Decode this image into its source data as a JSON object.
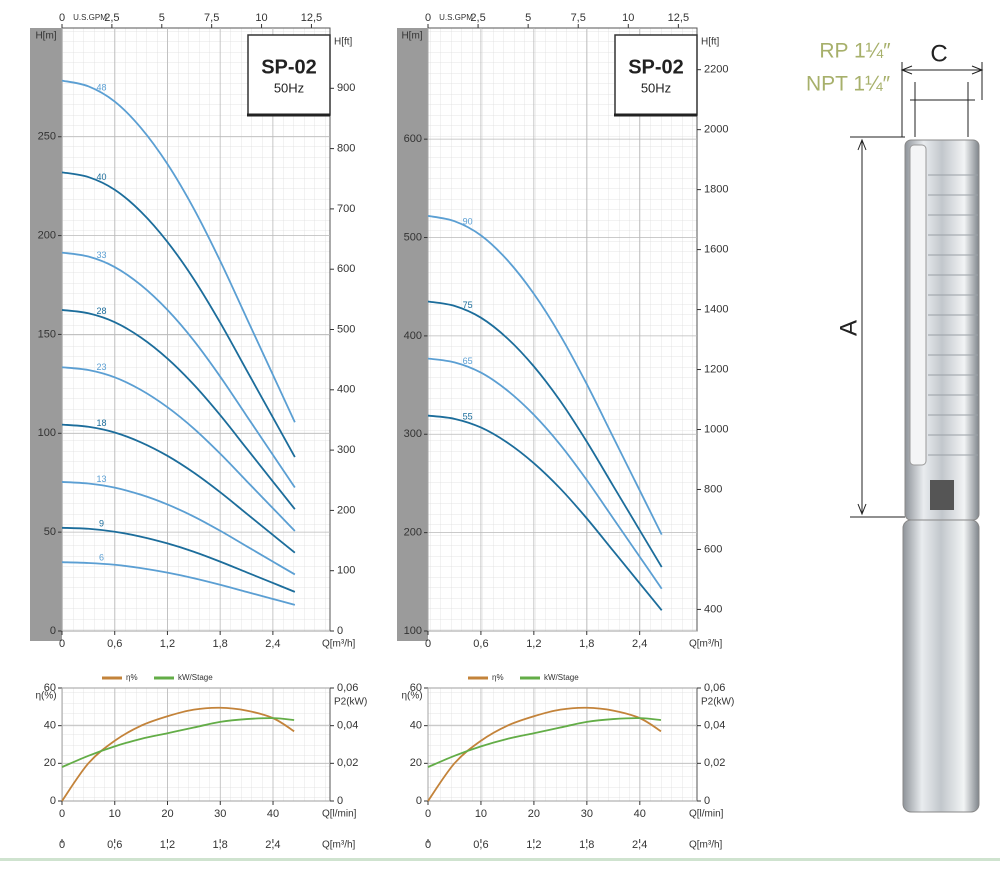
{
  "chart_data": [
    {
      "type": "line",
      "title": "SP-02",
      "subtitle": "50Hz",
      "x_label": "Q[m³/h]",
      "y_label": "H[m]",
      "y2_label": "H[ft]",
      "x_top_label": "U.S.GPM",
      "x": [
        0,
        0.3,
        0.6,
        0.9,
        1.2,
        1.5,
        1.8,
        2.1,
        2.4,
        2.65
      ],
      "xlim": [
        0,
        3.05
      ],
      "xticks": [
        0,
        {
          "value": 0.6,
          "label": "0,6"
        },
        {
          "value": 1.2,
          "label": "1,2"
        },
        {
          "value": 1.8,
          "label": "1,8"
        },
        {
          "value": 2.4,
          "label": "2,4"
        }
      ],
      "x_top_lim": [
        0,
        13.43
      ],
      "x_top_ticks": [
        0,
        {
          "value": 2.5,
          "label": "2,5"
        },
        5,
        {
          "value": 7.5,
          "label": "7,5"
        },
        10,
        {
          "value": 12.5,
          "label": "12,5"
        }
      ],
      "ylim": [
        0,
        305
      ],
      "yticks": [
        0,
        50,
        100,
        150,
        200,
        250
      ],
      "y2lim": [
        0,
        1000
      ],
      "y2ticks": [
        0,
        100,
        200,
        300,
        400,
        500,
        600,
        700,
        800,
        900
      ],
      "grid": true,
      "series": [
        {
          "name": "6",
          "color": "#5b9fd3",
          "values": [
            34.8,
            34.4,
            33.5,
            31.8,
            29.5,
            26.7,
            23.4,
            19.8,
            16.2,
            13.2
          ]
        },
        {
          "name": "9",
          "color": "#1c6d9b",
          "values": [
            52.2,
            51.7,
            50.2,
            47.7,
            44.3,
            40.1,
            35.1,
            29.7,
            24.3,
            19.8
          ]
        },
        {
          "name": "13",
          "color": "#5b9fd3",
          "values": [
            75.4,
            74.6,
            72.5,
            68.9,
            64,
            57.9,
            50.7,
            42.9,
            35.1,
            28.6
          ]
        },
        {
          "name": "18",
          "color": "#1c6d9b",
          "values": [
            104.4,
            103.3,
            100.4,
            95.4,
            88.6,
            80.1,
            70.2,
            59.4,
            48.6,
            39.6
          ]
        },
        {
          "name": "23",
          "color": "#5b9fd3",
          "values": [
            133.4,
            132,
            128.3,
            121.9,
            113.2,
            102.4,
            89.7,
            75.9,
            62.1,
            50.6
          ]
        },
        {
          "name": "28",
          "color": "#1c6d9b",
          "values": [
            162.4,
            160.7,
            156.2,
            148.4,
            137.8,
            124.6,
            109.2,
            92.4,
            75.6,
            61.6
          ]
        },
        {
          "name": "33",
          "color": "#5b9fd3",
          "values": [
            191.4,
            189.4,
            184.1,
            174.9,
            162.4,
            146.9,
            128.7,
            108.9,
            89.1,
            72.6
          ]
        },
        {
          "name": "40",
          "color": "#1c6d9b",
          "values": [
            232,
            229.6,
            223.2,
            212,
            196.8,
            178,
            156,
            132,
            108,
            88
          ]
        },
        {
          "name": "48",
          "color": "#5b9fd3",
          "values": [
            278.4,
            275.5,
            267.8,
            254.4,
            236.2,
            213.6,
            187.2,
            158.4,
            129.6,
            105.6
          ]
        }
      ]
    },
    {
      "type": "line",
      "title": "SP-02",
      "subtitle": "50Hz",
      "x_label": "Q[m³/h]",
      "y_label": "H[m]",
      "y2_label": "H[ft]",
      "x_top_label": "U.S.GPM",
      "x": [
        0,
        0.3,
        0.6,
        0.9,
        1.2,
        1.5,
        1.8,
        2.1,
        2.4,
        2.65
      ],
      "xlim": [
        0,
        3.05
      ],
      "xticks": [
        0,
        {
          "value": 0.6,
          "label": "0,6"
        },
        {
          "value": 1.2,
          "label": "1,2"
        },
        {
          "value": 1.8,
          "label": "1,8"
        },
        {
          "value": 2.4,
          "label": "2,4"
        }
      ],
      "x_top_lim": [
        0,
        13.43
      ],
      "x_top_ticks": [
        0,
        {
          "value": 2.5,
          "label": "2,5"
        },
        5,
        {
          "value": 7.5,
          "label": "7,5"
        },
        10,
        {
          "value": 12.5,
          "label": "12,5"
        }
      ],
      "ylim": [
        100,
        713
      ],
      "yticks": [
        100,
        200,
        300,
        400,
        500,
        600
      ],
      "y2lim": [
        328,
        2339
      ],
      "y2ticks": [
        400,
        600,
        800,
        1000,
        1200,
        1400,
        1600,
        1800,
        2000,
        2200
      ],
      "grid": true,
      "series": [
        {
          "name": "55",
          "color": "#1c6d9b",
          "values": [
            319,
            315.7,
            306.9,
            291.5,
            270.6,
            244.8,
            214.5,
            181.5,
            148.5,
            121
          ]
        },
        {
          "name": "65",
          "color": "#5b9fd3",
          "values": [
            377,
            373.1,
            362.7,
            344.5,
            319.8,
            289.3,
            253.5,
            214.5,
            175.5,
            143
          ]
        },
        {
          "name": "75",
          "color": "#1c6d9b",
          "values": [
            435,
            430.5,
            418.5,
            397.5,
            369,
            333.8,
            292.5,
            247.5,
            202.5,
            165
          ]
        },
        {
          "name": "90",
          "color": "#5b9fd3",
          "values": [
            522,
            516.6,
            502.2,
            477,
            442.8,
            400.5,
            351,
            297,
            243,
            198
          ]
        }
      ]
    },
    {
      "type": "line",
      "x_label": "Q[l/min]",
      "y_label": "η(%)",
      "y2_label": "P2(kW)",
      "x_bottom2_label": "Q[m³/h]",
      "x": [
        0,
        5,
        10,
        15,
        20,
        25,
        30,
        35,
        40,
        44
      ],
      "xlim": [
        0,
        50.8
      ],
      "xticks": [
        0,
        10,
        20,
        30,
        40
      ],
      "x_bottom2_lim": [
        0,
        3.05
      ],
      "x_bottom2_ticks": [
        0,
        {
          "value": 0.6,
          "label": "0,6"
        },
        {
          "value": 1.2,
          "label": "1,2"
        },
        {
          "value": 1.8,
          "label": "1,8"
        },
        {
          "value": 2.4,
          "label": "2,4"
        }
      ],
      "ylim": [
        0,
        60
      ],
      "yticks": [
        0,
        20,
        40,
        60
      ],
      "y2lim": [
        0,
        0.06
      ],
      "y2ticks": [
        0,
        {
          "value": 0.02,
          "label": "0,02"
        },
        {
          "value": 0.04,
          "label": "0,04"
        },
        {
          "value": 0.06,
          "label": "0,06"
        }
      ],
      "grid": true,
      "legend": "top",
      "series": [
        {
          "name": "η%",
          "color": "#c3833a",
          "values": [
            0,
            20,
            32,
            40,
            45,
            48.5,
            49.5,
            48,
            44,
            37
          ]
        },
        {
          "name": "kW/Stage",
          "color": "#63ad47",
          "axis": "y2",
          "values": [
            0.018,
            0.024,
            0.029,
            0.033,
            0.036,
            0.039,
            0.042,
            0.0435,
            0.044,
            0.043
          ]
        }
      ]
    },
    {
      "type": "line",
      "x_label": "Q[l/min]",
      "y_label": "η(%)",
      "y2_label": "P2(kW)",
      "x_bottom2_label": "Q[m³/h]",
      "x": [
        0,
        5,
        10,
        15,
        20,
        25,
        30,
        35,
        40,
        44
      ],
      "xlim": [
        0,
        50.8
      ],
      "xticks": [
        0,
        10,
        20,
        30,
        40
      ],
      "x_bottom2_lim": [
        0,
        3.05
      ],
      "x_bottom2_ticks": [
        0,
        {
          "value": 0.6,
          "label": "0,6"
        },
        {
          "value": 1.2,
          "label": "1,2"
        },
        {
          "value": 1.8,
          "label": "1,8"
        },
        {
          "value": 2.4,
          "label": "2,4"
        }
      ],
      "ylim": [
        0,
        60
      ],
      "yticks": [
        0,
        20,
        40,
        60
      ],
      "y2lim": [
        0,
        0.06
      ],
      "y2ticks": [
        0,
        {
          "value": 0.02,
          "label": "0,02"
        },
        {
          "value": 0.04,
          "label": "0,04"
        },
        {
          "value": 0.06,
          "label": "0,06"
        }
      ],
      "grid": true,
      "legend": "top",
      "series": [
        {
          "name": "η%",
          "color": "#c3833a",
          "values": [
            0,
            20,
            32,
            40,
            45,
            48.5,
            49.5,
            48,
            44,
            37
          ]
        },
        {
          "name": "kW/Stage",
          "color": "#63ad47",
          "axis": "y2",
          "values": [
            0.018,
            0.024,
            0.029,
            0.033,
            0.036,
            0.039,
            0.042,
            0.0435,
            0.044,
            0.043
          ]
        }
      ]
    }
  ],
  "product_drawing": {
    "thread_rp": "RP 1¼″",
    "thread_npt": "NPT 1¼″",
    "dim_c": "C",
    "dim_a": "A"
  }
}
